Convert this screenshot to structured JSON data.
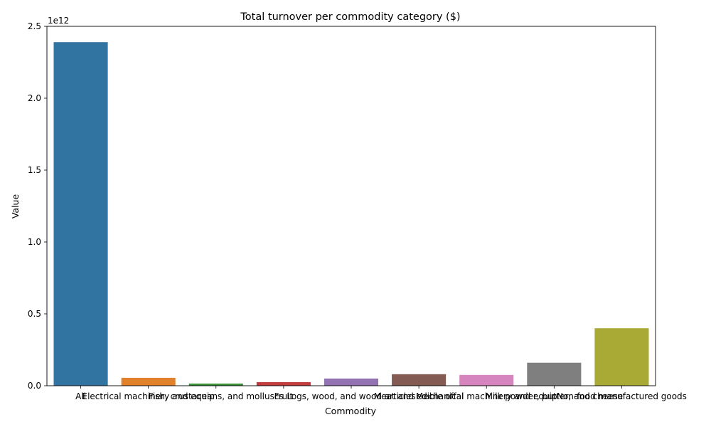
{
  "chart_data": {
    "type": "bar",
    "title": "Total turnover per commodity category ($)",
    "xlabel": "Commodity",
    "ylabel": "Value",
    "y_offset_label": "1e12",
    "ylim": [
      0,
      2500000000000.0
    ],
    "yticks": [
      0,
      500000000000.0,
      1000000000000.0,
      1500000000000.0,
      2000000000000.0,
      2500000000000.0
    ],
    "ytick_labels": [
      "0.0",
      "0.5",
      "1.0",
      "1.5",
      "2.0",
      "2.5"
    ],
    "categories": [
      "All",
      "Electrical machinery and equip",
      "Fish, crustaceans, and molluscs",
      "Fruit",
      "Logs, wood, and wood articles",
      "Meat and edible offal",
      "Mechanical machinery and equip",
      "Milk powder, butter, and cheese",
      "Non-food manufactured goods"
    ],
    "values": [
      2390000000000.0,
      55000000000.0,
      15000000000.0,
      25000000000.0,
      50000000000.0,
      80000000000.0,
      75000000000.0,
      160000000000.0,
      400000000000.0
    ],
    "colors": [
      "#3274a1",
      "#e1812c",
      "#3a923a",
      "#c03d3e",
      "#9372b2",
      "#845b53",
      "#d684bd",
      "#7f7f7f",
      "#a9aa35"
    ],
    "grid": false,
    "legend": "none"
  }
}
